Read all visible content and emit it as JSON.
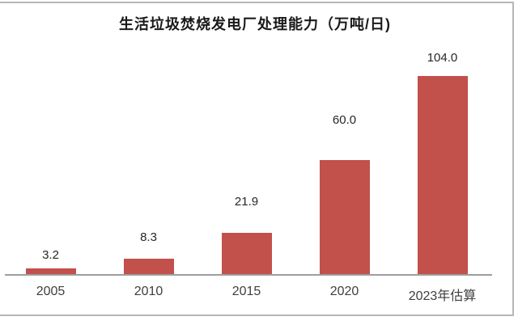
{
  "chart": {
    "title": "生活垃圾焚烧发电厂处理能力（万吨/日)",
    "bar_color": "#c2504b",
    "axis_color": "#9e9e9e",
    "frame_color": "#b6b6b6",
    "background": "#ffffff"
  },
  "chart_data": {
    "type": "bar",
    "title": "生活垃圾焚烧发电厂处理能力（万吨/日)",
    "categories": [
      "2005",
      "2010",
      "2015",
      "2020",
      "2023年估算"
    ],
    "values": [
      3.2,
      8.3,
      21.9,
      60.0,
      104.0
    ],
    "value_labels": [
      "3.2",
      "8.3",
      "21.9",
      "60.0",
      "104.0"
    ],
    "xlabel": "",
    "ylabel": "",
    "ylim": [
      0,
      110
    ],
    "grid": false,
    "legend": "none",
    "y_axis_visible": false,
    "data_labels_position": "outside-end",
    "bar_color": "#c2504b"
  }
}
